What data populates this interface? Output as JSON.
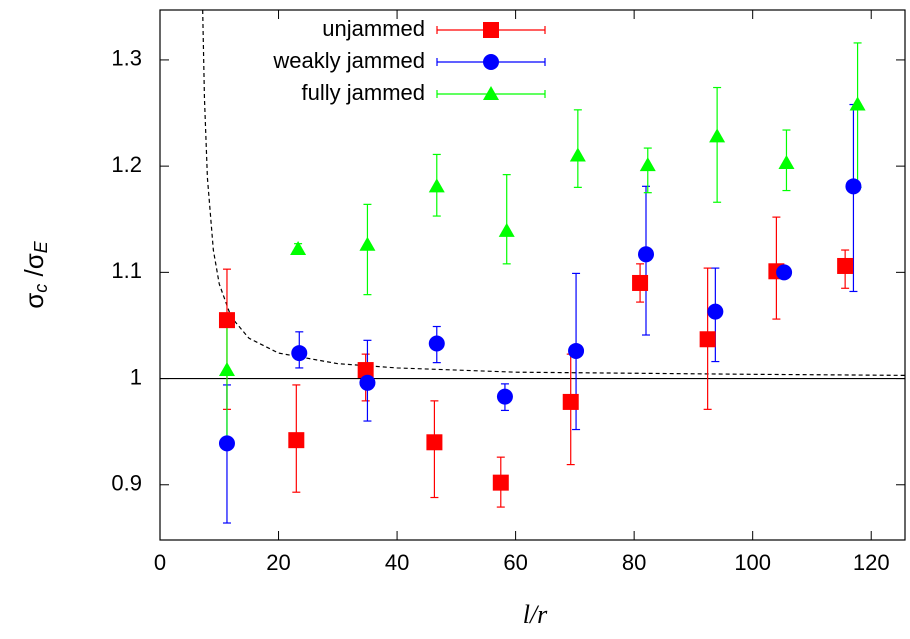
{
  "chart_data": {
    "type": "scatter",
    "xlabel": [
      "l",
      "/",
      "r"
    ],
    "ylabel": [
      "σ",
      "c",
      " /σ",
      "E"
    ],
    "xlim": [
      0,
      125.7
    ],
    "ylim": [
      0.848,
      1.347
    ],
    "xticks": [
      0,
      20,
      40,
      60,
      80,
      100,
      120
    ],
    "yticks": [
      0.9,
      1,
      1.1,
      1.2,
      1.3
    ],
    "legend": "top-center",
    "reference_line": 1,
    "series": [
      {
        "name": "unjammed",
        "color": "#ff0000",
        "marker": "square",
        "x": [
          11.3,
          23,
          34.7,
          46.3,
          57.5,
          69.3,
          81,
          92.4,
          104,
          115.6
        ],
        "values": [
          1.055,
          0.942,
          1.008,
          0.94,
          0.902,
          0.978,
          1.09,
          1.037,
          1.101,
          1.106
        ],
        "y_low": [
          0.971,
          0.893,
          0.979,
          0.888,
          0.879,
          0.919,
          1.072,
          0.971,
          1.056,
          1.085
        ],
        "y_high": [
          1.103,
          0.994,
          1.023,
          0.979,
          0.926,
          1.023,
          1.108,
          1.104,
          1.152,
          1.121
        ]
      },
      {
        "name": "weakly jammed",
        "color": "#0000ff",
        "marker": "circle",
        "x": [
          11.3,
          23.5,
          35,
          46.7,
          58.2,
          70.2,
          82,
          93.7,
          105.3,
          117
        ],
        "values": [
          0.939,
          1.024,
          0.996,
          1.033,
          0.983,
          1.026,
          1.117,
          1.063,
          1.1,
          1.181
        ],
        "y_low": [
          0.864,
          1.01,
          0.96,
          1.015,
          0.97,
          0.952,
          1.041,
          1.016,
          1.098,
          1.082
        ],
        "y_high": [
          0.994,
          1.044,
          1.036,
          1.049,
          0.995,
          1.099,
          1.181,
          1.104,
          1.102,
          1.258
        ]
      },
      {
        "name": "fully jammed",
        "color": "#00ff00",
        "marker": "triangle",
        "x": [
          11.3,
          23.3,
          35,
          46.7,
          58.5,
          70.5,
          82.3,
          94,
          105.7,
          117.7
        ],
        "values": [
          1.008,
          1.122,
          1.126,
          1.181,
          1.139,
          1.21,
          1.201,
          1.228,
          1.203,
          1.258
        ],
        "y_low": [
          0.942,
          1.118,
          1.079,
          1.153,
          1.108,
          1.18,
          1.175,
          1.166,
          1.177,
          1.18
        ],
        "y_high": [
          1.055,
          1.127,
          1.164,
          1.211,
          1.192,
          1.253,
          1.217,
          1.274,
          1.234,
          1.316
        ]
      }
    ],
    "curve": {
      "color": "#000000",
      "x": [
        7.2,
        7.5,
        8,
        9,
        10,
        12,
        15,
        20,
        30,
        40,
        60,
        80,
        100,
        125.7
      ],
      "values": [
        1.347,
        1.264,
        1.189,
        1.121,
        1.089,
        1.058,
        1.038,
        1.024,
        1.014,
        1.01,
        1.006,
        1.005,
        1.004,
        1.003
      ]
    }
  }
}
